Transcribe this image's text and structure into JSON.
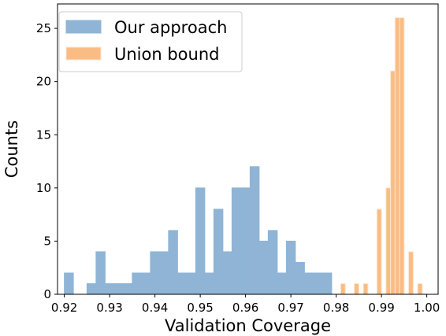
{
  "chart_data": {
    "type": "bar",
    "xlabel": "Validation Coverage",
    "ylabel": "Counts",
    "xlim": [
      0.9185,
      1.0025
    ],
    "ylim": [
      0,
      27.3
    ],
    "x_ticks": [
      "0.92",
      "0.93",
      "0.94",
      "0.95",
      "0.96",
      "0.97",
      "0.98",
      "0.99",
      "1.00"
    ],
    "x_tick_values": [
      0.92,
      0.93,
      0.94,
      0.95,
      0.96,
      0.97,
      0.98,
      0.99,
      1.0
    ],
    "y_ticks": [
      "0",
      "5",
      "10",
      "15",
      "20",
      "25"
    ],
    "y_tick_values": [
      0,
      5,
      10,
      15,
      20,
      25
    ],
    "grid": false,
    "legend_position": "top-left",
    "series": [
      {
        "name": "Our approach",
        "color": "#8fb4d6",
        "edge_color": "#8fb4d6",
        "bin_width": 0.002,
        "bins": [
          {
            "x": 0.921,
            "count": 2
          },
          {
            "x": 0.926,
            "count": 1
          },
          {
            "x": 0.928,
            "count": 4
          },
          {
            "x": 0.93,
            "count": 1
          },
          {
            "x": 0.932,
            "count": 1
          },
          {
            "x": 0.934,
            "count": 1
          },
          {
            "x": 0.936,
            "count": 2
          },
          {
            "x": 0.938,
            "count": 2
          },
          {
            "x": 0.94,
            "count": 4
          },
          {
            "x": 0.942,
            "count": 4
          },
          {
            "x": 0.944,
            "count": 6
          },
          {
            "x": 0.946,
            "count": 2
          },
          {
            "x": 0.948,
            "count": 2
          },
          {
            "x": 0.95,
            "count": 10
          },
          {
            "x": 0.952,
            "count": 2
          },
          {
            "x": 0.954,
            "count": 8
          },
          {
            "x": 0.956,
            "count": 4
          },
          {
            "x": 0.958,
            "count": 10
          },
          {
            "x": 0.96,
            "count": 10
          },
          {
            "x": 0.962,
            "count": 12
          },
          {
            "x": 0.964,
            "count": 5
          },
          {
            "x": 0.966,
            "count": 6
          },
          {
            "x": 0.968,
            "count": 2
          },
          {
            "x": 0.97,
            "count": 5
          },
          {
            "x": 0.972,
            "count": 3
          },
          {
            "x": 0.974,
            "count": 2
          },
          {
            "x": 0.976,
            "count": 2
          },
          {
            "x": 0.978,
            "count": 2
          }
        ]
      },
      {
        "name": "Union bound",
        "color": "#fbbc84",
        "edge_color": "#fde4cc",
        "bin_width": 0.001,
        "bins": [
          {
            "x": 0.9815,
            "count": 1
          },
          {
            "x": 0.9845,
            "count": 1
          },
          {
            "x": 0.9865,
            "count": 1
          },
          {
            "x": 0.9895,
            "count": 8
          },
          {
            "x": 0.9915,
            "count": 10
          },
          {
            "x": 0.9925,
            "count": 21
          },
          {
            "x": 0.9935,
            "count": 26
          },
          {
            "x": 0.9945,
            "count": 26
          },
          {
            "x": 0.9965,
            "count": 4
          },
          {
            "x": 0.9985,
            "count": 1
          }
        ]
      }
    ]
  }
}
